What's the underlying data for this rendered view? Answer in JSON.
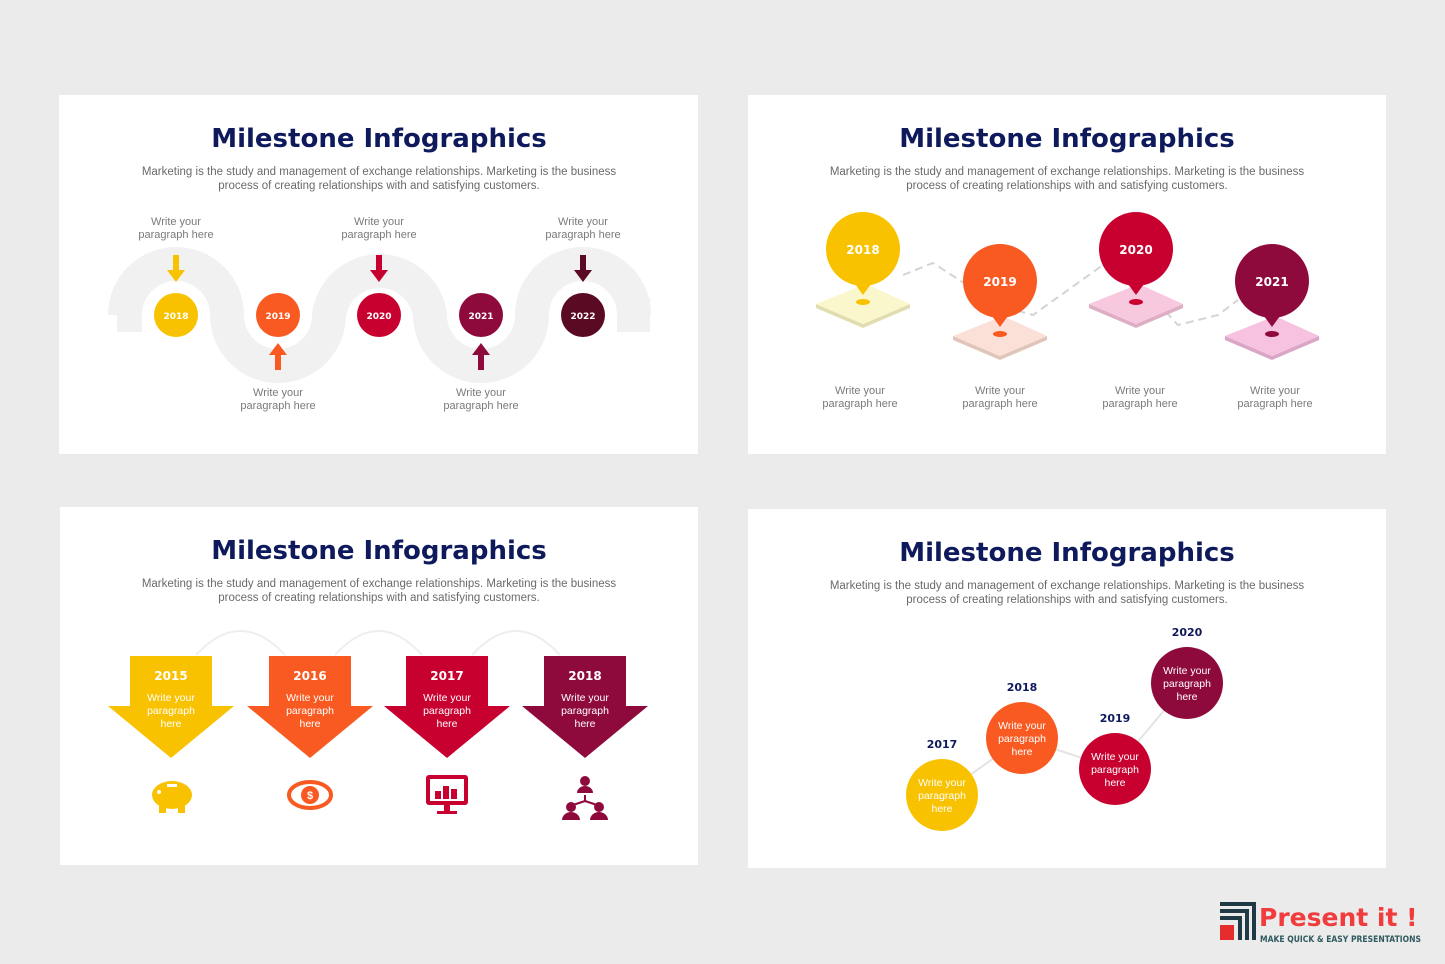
{
  "colors": {
    "yellow": "#f9c200",
    "orange": "#f85a22",
    "red": "#c8002f",
    "maroon": "#8f0a3c",
    "dark": "#5a0a22",
    "navy": "#0e1a5c"
  },
  "slides": [
    {
      "title": "Milestone Infographics",
      "subtitle": [
        "Marketing is the study and management of exchange relationships. Marketing is the business",
        "process of creating relationships with and satisfying customers."
      ],
      "milestones": [
        {
          "year": "2018",
          "label": [
            "Write your",
            "paragraph here"
          ],
          "arrow": "down"
        },
        {
          "year": "2019",
          "label": [
            "Write your",
            "paragraph here"
          ],
          "arrow": "up"
        },
        {
          "year": "2020",
          "label": [
            "Write your",
            "paragraph here"
          ],
          "arrow": "down"
        },
        {
          "year": "2021",
          "label": [
            "Write your",
            "paragraph here"
          ],
          "arrow": "up"
        },
        {
          "year": "2022",
          "label": [
            "Write your",
            "paragraph here"
          ],
          "arrow": "down"
        }
      ]
    },
    {
      "title": "Milestone Infographics",
      "subtitle": [
        "Marketing is the study and management of exchange relationships. Marketing is the business",
        "process of creating relationships with and satisfying customers."
      ],
      "milestones": [
        {
          "year": "2018",
          "label": [
            "Write your",
            "paragraph here"
          ]
        },
        {
          "year": "2019",
          "label": [
            "Write your",
            "paragraph here"
          ]
        },
        {
          "year": "2020",
          "label": [
            "Write your",
            "paragraph here"
          ]
        },
        {
          "year": "2021",
          "label": [
            "Write your",
            "paragraph here"
          ]
        }
      ]
    },
    {
      "title": "Milestone Infographics",
      "subtitle": [
        "Marketing is the study and management of exchange relationships. Marketing is the business",
        "process of creating relationships with and satisfying customers."
      ],
      "milestones": [
        {
          "year": "2015",
          "text": [
            "Write your",
            "paragraph",
            "here"
          ],
          "icon": "piggy-bank-icon"
        },
        {
          "year": "2016",
          "text": [
            "Write your",
            "paragraph",
            "here"
          ],
          "icon": "eye-dollar-icon"
        },
        {
          "year": "2017",
          "text": [
            "Write your",
            "paragraph",
            "here"
          ],
          "icon": "monitor-chart-icon"
        },
        {
          "year": "2018",
          "text": [
            "Write your",
            "paragraph",
            "here"
          ],
          "icon": "team-hierarchy-icon"
        }
      ]
    },
    {
      "title": "Milestone Infographics",
      "subtitle": [
        "Marketing is the study and management of exchange relationships. Marketing is the business",
        "process of creating relationships with and satisfying customers."
      ],
      "milestones": [
        {
          "year": "2017",
          "text": [
            "Write your",
            "paragraph",
            "here"
          ]
        },
        {
          "year": "2018",
          "text": [
            "Write your",
            "paragraph",
            "here"
          ]
        },
        {
          "year": "2019",
          "text": [
            "Write your",
            "paragraph",
            "here"
          ]
        },
        {
          "year": "2020",
          "text": [
            "Write your",
            "paragraph",
            "here"
          ]
        }
      ]
    }
  ],
  "logo": {
    "name": "Present it !",
    "tagline": "MAKE QUICK & EASY PRESENTATIONS"
  }
}
